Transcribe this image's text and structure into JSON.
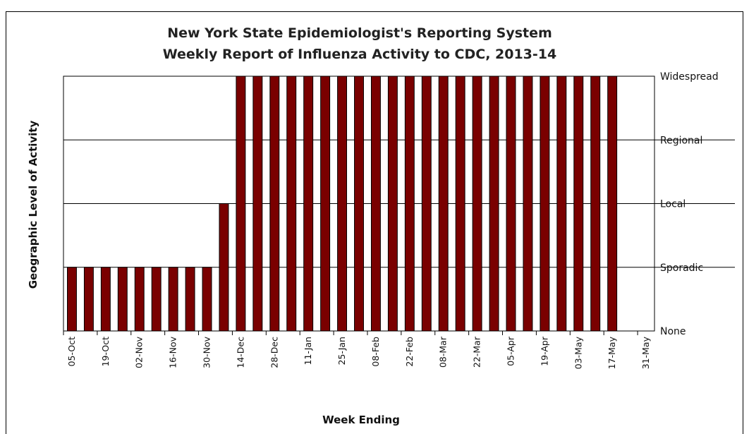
{
  "chart_data": {
    "type": "bar",
    "title": "New York State Epidemiologist's Reporting System",
    "subtitle": "Weekly Report of Influenza Activity to CDC, 2013-14",
    "xlabel": "Week Ending",
    "ylabel": "Geographic Level of Activity",
    "levels": [
      "None",
      "Sporadic",
      "Local",
      "Regional",
      "Widespread"
    ],
    "ylim": [
      0,
      4
    ],
    "grid": true,
    "bar_color": "#7a0000",
    "categories": [
      "05-Oct",
      "12-Oct",
      "19-Oct",
      "26-Oct",
      "02-Nov",
      "09-Nov",
      "16-Nov",
      "23-Nov",
      "30-Nov",
      "07-Dec",
      "14-Dec",
      "21-Dec",
      "28-Dec",
      "04-Jan",
      "11-Jan",
      "18-Jan",
      "25-Jan",
      "01-Feb",
      "08-Feb",
      "15-Feb",
      "22-Feb",
      "01-Mar",
      "08-Mar",
      "15-Mar",
      "22-Mar",
      "29-Mar",
      "05-Apr",
      "12-Apr",
      "19-Apr",
      "26-Apr",
      "03-May",
      "10-May",
      "17-May",
      "24-May",
      "31-May"
    ],
    "tick_labels": [
      "05-Oct",
      "19-Oct",
      "02-Nov",
      "16-Nov",
      "30-Nov",
      "14-Dec",
      "28-Dec",
      "11-Jan",
      "25-Jan",
      "08-Feb",
      "22-Feb",
      "08-Mar",
      "22-Mar",
      "05-Apr",
      "19-Apr",
      "03-May",
      "17-May",
      "31-May"
    ],
    "values": [
      1,
      1,
      1,
      1,
      1,
      1,
      1,
      1,
      1,
      2,
      4,
      4,
      4,
      4,
      4,
      4,
      4,
      4,
      4,
      4,
      4,
      4,
      4,
      4,
      4,
      4,
      4,
      4,
      4,
      4,
      4,
      4,
      4,
      0,
      0
    ]
  }
}
